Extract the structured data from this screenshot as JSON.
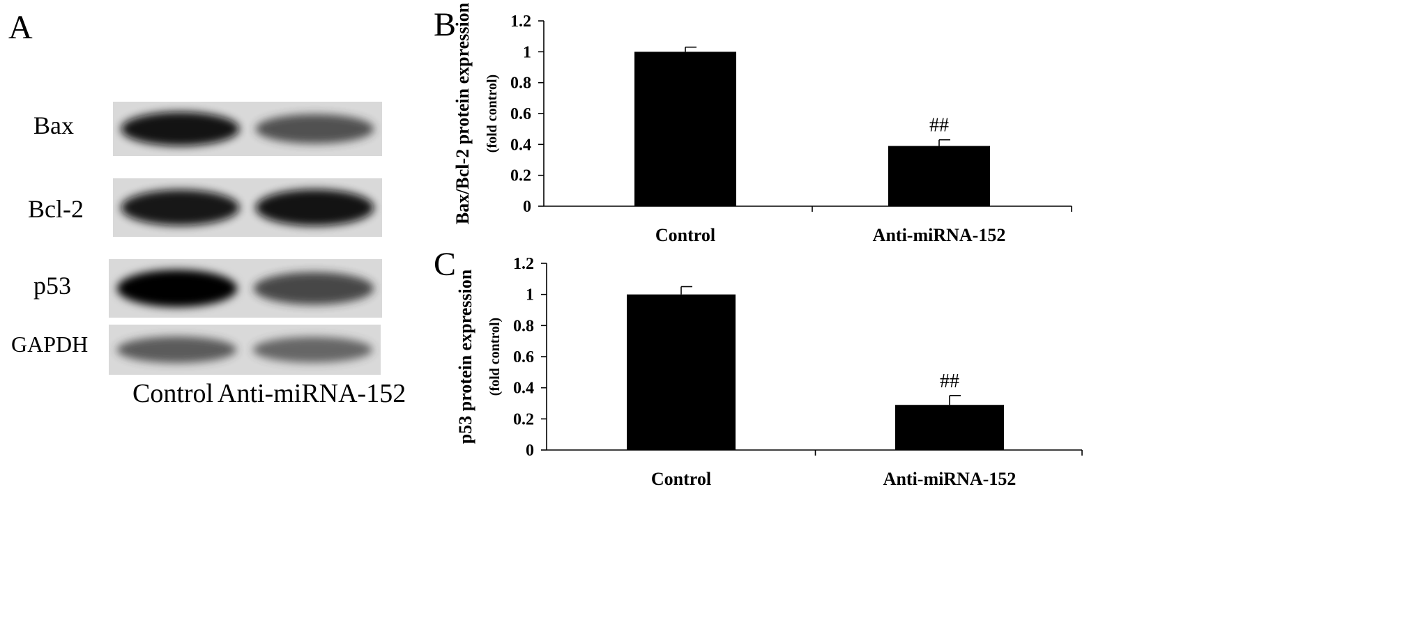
{
  "figure": {
    "panel_a": {
      "letter": "A",
      "rows": [
        {
          "label": "Bax",
          "intensity": [
            0.95,
            0.65
          ]
        },
        {
          "label": "Bcl-2",
          "intensity": [
            0.9,
            0.95
          ]
        },
        {
          "label": "p53",
          "intensity": [
            1.0,
            0.7
          ]
        },
        {
          "label": "GAPDH",
          "intensity": [
            0.6,
            0.55
          ]
        }
      ],
      "lanes": [
        "Control",
        "Anti-miRNA-152"
      ]
    },
    "panel_b": {
      "letter": "B"
    },
    "panel_c": {
      "letter": "C"
    }
  },
  "chart_data": [
    {
      "type": "bar",
      "categories": [
        "Control",
        "Anti-miRNA-152"
      ],
      "values": [
        1.0,
        0.39
      ],
      "errors": [
        0.03,
        0.04
      ],
      "annotations": [
        "",
        "##"
      ],
      "ylabel": "Bax/Bcl-2 protein expression",
      "ylabel_sub": "(fold control)",
      "ylim": [
        0,
        1.2
      ],
      "yticks": [
        "0",
        "0.2",
        "0.4",
        "0.6",
        "0.8",
        "1",
        "1.2"
      ],
      "bar_color": "#000000"
    },
    {
      "type": "bar",
      "categories": [
        "Control",
        "Anti-miRNA-152"
      ],
      "values": [
        1.0,
        0.29
      ],
      "errors": [
        0.05,
        0.06
      ],
      "annotations": [
        "",
        "##"
      ],
      "ylabel": "p53 protein expression",
      "ylabel_sub": "(fold control)",
      "ylim": [
        0,
        1.2
      ],
      "yticks": [
        "0",
        "0.2",
        "0.4",
        "0.6",
        "0.8",
        "1",
        "1.2"
      ],
      "bar_color": "#000000"
    }
  ]
}
